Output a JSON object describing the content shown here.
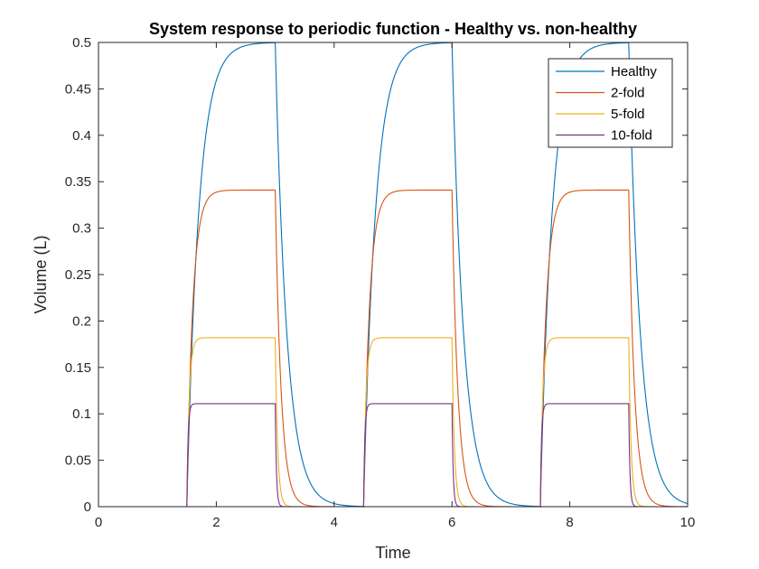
{
  "chart_data": {
    "type": "line",
    "title": "System response to periodic function - Healthy vs. non-healthy",
    "xlabel": "Time",
    "ylabel": "Volume (L)",
    "xlim": [
      0,
      10
    ],
    "ylim": [
      0,
      0.5
    ],
    "xticks": [
      0,
      2,
      4,
      6,
      8,
      10
    ],
    "xtick_labels": [
      "0",
      "2",
      "4",
      "6",
      "8",
      "10"
    ],
    "yticks": [
      0,
      0.05,
      0.1,
      0.15,
      0.2,
      0.25,
      0.3,
      0.35,
      0.4,
      0.45,
      0.5
    ],
    "ytick_labels": [
      "0",
      "0.05",
      "0.1",
      "0.15",
      "0.2",
      "0.25",
      "0.3",
      "0.35",
      "0.4",
      "0.45",
      "0.5"
    ],
    "grid": false,
    "legend_position": "top-right",
    "periods": [
      {
        "on": 1.5,
        "off": 3.0
      },
      {
        "on": 4.5,
        "off": 6.0
      },
      {
        "on": 7.5,
        "off": 9.0
      }
    ],
    "series": [
      {
        "name": "Healthy",
        "color": "#0072BD",
        "plateau": 0.5,
        "time_constant": 0.2
      },
      {
        "name": "2-fold",
        "color": "#D95319",
        "plateau": 0.341,
        "time_constant": 0.1
      },
      {
        "name": "5-fold",
        "color": "#EDB120",
        "plateau": 0.182,
        "time_constant": 0.04
      },
      {
        "name": "10-fold",
        "color": "#7E2F8E",
        "plateau": 0.111,
        "time_constant": 0.02
      }
    ]
  }
}
